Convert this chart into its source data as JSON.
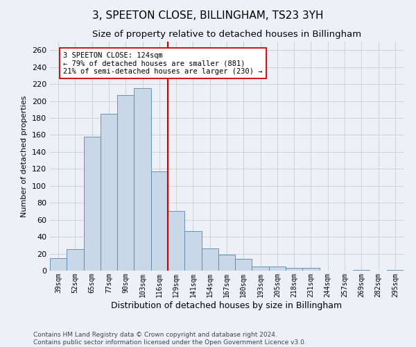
{
  "title": "3, SPEETON CLOSE, BILLINGHAM, TS23 3YH",
  "subtitle": "Size of property relative to detached houses in Billingham",
  "xlabel": "Distribution of detached houses by size in Billingham",
  "ylabel": "Number of detached properties",
  "categories": [
    "39sqm",
    "52sqm",
    "65sqm",
    "77sqm",
    "90sqm",
    "103sqm",
    "116sqm",
    "129sqm",
    "141sqm",
    "154sqm",
    "167sqm",
    "180sqm",
    "193sqm",
    "205sqm",
    "218sqm",
    "231sqm",
    "244sqm",
    "257sqm",
    "269sqm",
    "282sqm",
    "295sqm"
  ],
  "values": [
    15,
    25,
    158,
    185,
    207,
    215,
    117,
    70,
    47,
    26,
    19,
    14,
    5,
    5,
    3,
    3,
    0,
    0,
    1,
    0,
    1
  ],
  "bar_color": "#c8d8e8",
  "bar_edge_color": "#5588aa",
  "grid_color": "#cccccc",
  "background_color": "#eef0f8",
  "vline_x": 6.5,
  "vline_color": "#cc0000",
  "annotation_line1": "3 SPEETON CLOSE: 124sqm",
  "annotation_line2": "← 79% of detached houses are smaller (881)",
  "annotation_line3": "21% of semi-detached houses are larger (230) →",
  "annotation_box_color": "#ffffff",
  "annotation_box_edge": "#cc0000",
  "ylim": [
    0,
    270
  ],
  "yticks": [
    0,
    20,
    40,
    60,
    80,
    100,
    120,
    140,
    160,
    180,
    200,
    220,
    240,
    260
  ],
  "footer_line1": "Contains HM Land Registry data © Crown copyright and database right 2024.",
  "footer_line2": "Contains public sector information licensed under the Open Government Licence v3.0.",
  "title_fontsize": 11,
  "subtitle_fontsize": 9.5,
  "annotation_fontsize": 7.5,
  "footer_fontsize": 6.5,
  "ylabel_fontsize": 8,
  "xlabel_fontsize": 9,
  "ytick_fontsize": 8,
  "xtick_fontsize": 7
}
